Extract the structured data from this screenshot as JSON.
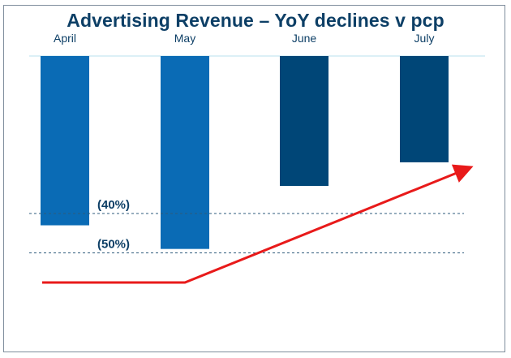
{
  "chart_data": {
    "type": "bar",
    "title": "Advertising Revenue – YoY declines v pcp",
    "categories": [
      "April",
      "May",
      "June",
      "July"
    ],
    "values": [
      -43,
      -49,
      -33,
      -27
    ],
    "unit": "%",
    "ylim": [
      -60,
      0
    ],
    "grid": false,
    "legend": "none",
    "bar_colors": [
      "#0a6bb5",
      "#0a6bb5",
      "#004677",
      "#004677"
    ],
    "reference_lines": [
      {
        "value": -40,
        "label": "(40%)"
      },
      {
        "value": -50,
        "label": "(50%)"
      }
    ],
    "annotation": {
      "type": "trend-arrow",
      "color": "#e81a1a"
    }
  },
  "colors": {
    "title": "#0d3f66",
    "baseline": "#c7e7f1",
    "reference_line": "#2f5b7c",
    "frame": "#7f8d9c"
  }
}
